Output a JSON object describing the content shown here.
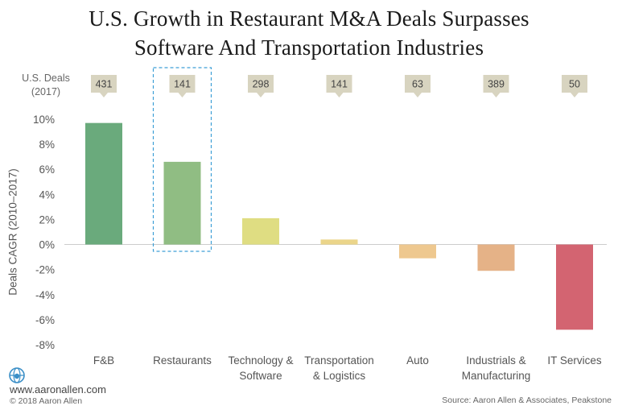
{
  "chart_data": {
    "type": "bar",
    "title": "U.S. Growth in Restaurant M&A Deals Surpasses Software And Transportation Industries",
    "title_lines": [
      "U.S. Growth in Restaurant M&A Deals Surpasses",
      "Software And Transportation Industries"
    ],
    "ylabel": "Deals CAGR (2010–2017)",
    "xlabel": "",
    "ylim": [
      -8,
      10
    ],
    "yticks": [
      10,
      8,
      6,
      4,
      2,
      0,
      -2,
      -4,
      -6,
      -8
    ],
    "ytick_labels": [
      "10%",
      "8%",
      "6%",
      "4%",
      "2%",
      "0%",
      "-2%",
      "-4%",
      "-6%",
      "-8%"
    ],
    "categories": [
      [
        "F&B"
      ],
      [
        "Restaurants"
      ],
      [
        "Technology &",
        "Software"
      ],
      [
        "Transportation",
        "& Logistics"
      ],
      [
        "Auto"
      ],
      [
        "Industrials &",
        "Manufacturing"
      ],
      [
        "IT Services"
      ]
    ],
    "values": [
      9.7,
      6.6,
      2.1,
      0.4,
      -1.1,
      -2.1,
      -6.8
    ],
    "colors": [
      "#6aaa7c",
      "#90bd83",
      "#dfdd82",
      "#ebd58a",
      "#eec88f",
      "#e5b287",
      "#d36471"
    ],
    "deals_label_lines": [
      "U.S. Deals",
      "(2017)"
    ],
    "deals_counts": [
      "431",
      "141",
      "298",
      "141",
      "63",
      "389",
      "50"
    ],
    "highlighted_category_index": 1,
    "grid": false,
    "legend": "none"
  },
  "colors": {
    "callout_fill": "#d8d4c0",
    "callout_text": "#444444",
    "highlight_border": "#3d9fd6",
    "zero_line": "#cccccc",
    "logo": "#3b8fc7"
  },
  "footer": {
    "website": "www.aaronallen.com",
    "copyright": "© 2018 Aaron Allen",
    "source": "Source: Aaron Allen & Associates, Peakstone"
  },
  "logo_icon": "globe-icon"
}
